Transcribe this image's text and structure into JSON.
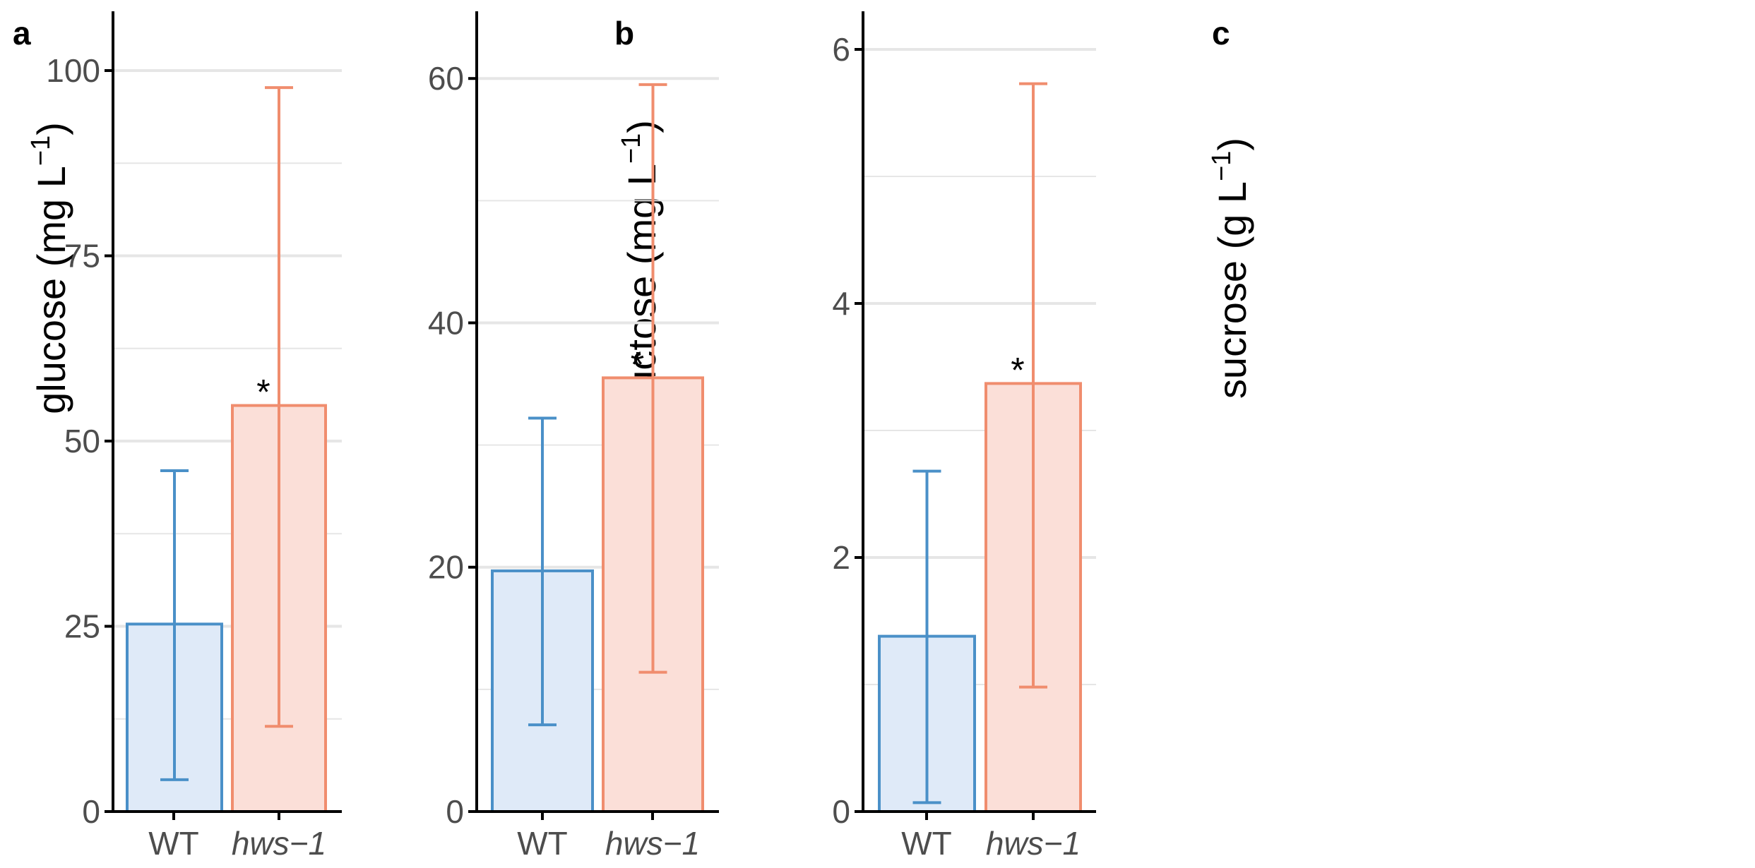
{
  "colors": {
    "wt_line": "#4a90c8",
    "wt_fill": "#dfeaf8",
    "hws_line": "#f08d6e",
    "hws_fill": "#fbdfd8",
    "grid": "#e6e6e6",
    "axis": "#000000",
    "tick_text": "#4d4d4d"
  },
  "chart_data": [
    {
      "panel": "a",
      "type": "bar",
      "categories": [
        "WT",
        "hws−1"
      ],
      "category_italic": [
        false,
        true
      ],
      "values": [
        25.3,
        54.8
      ],
      "error_low": [
        4.3,
        11.5
      ],
      "error_high": [
        46.0,
        97.7
      ],
      "significance": [
        "",
        "*"
      ],
      "ylabel_main": "glucose (mg L",
      "ylabel_sup": "−1",
      "ylabel_close": ")",
      "ylim": [
        0,
        108
      ],
      "major_ticks": [
        0,
        25,
        50,
        75,
        100
      ],
      "tick_labels": [
        "0",
        "25",
        "50",
        "75",
        "100"
      ],
      "minor_ticks": [
        12.5,
        37.5,
        62.5,
        87.5
      ]
    },
    {
      "panel": "b",
      "type": "bar",
      "categories": [
        "WT",
        "hws−1"
      ],
      "category_italic": [
        false,
        true
      ],
      "values": [
        19.7,
        35.5
      ],
      "error_low": [
        7.1,
        11.4
      ],
      "error_high": [
        32.2,
        59.5
      ],
      "significance": [
        "",
        "*"
      ],
      "ylabel_main": "fructose (mg L",
      "ylabel_sup": "−1",
      "ylabel_close": ")",
      "ylim": [
        0,
        65.5
      ],
      "major_ticks": [
        0,
        20,
        40,
        60
      ],
      "tick_labels": [
        "0",
        "20",
        "40",
        "60"
      ],
      "minor_ticks": [
        10,
        30,
        50
      ]
    },
    {
      "panel": "c",
      "type": "bar",
      "categories": [
        "WT",
        "hws−1"
      ],
      "category_italic": [
        false,
        true
      ],
      "values": [
        1.38,
        3.37
      ],
      "error_low": [
        0.07,
        0.98
      ],
      "error_high": [
        2.68,
        5.73
      ],
      "significance": [
        "",
        "*"
      ],
      "ylabel_main": "sucrose (g L",
      "ylabel_sup": "−1",
      "ylabel_close": ")",
      "ylim": [
        0,
        6.3
      ],
      "major_ticks": [
        0,
        2,
        4,
        6
      ],
      "tick_labels": [
        "0",
        "2",
        "4",
        "6"
      ],
      "minor_ticks": [
        1,
        3,
        5
      ]
    }
  ]
}
